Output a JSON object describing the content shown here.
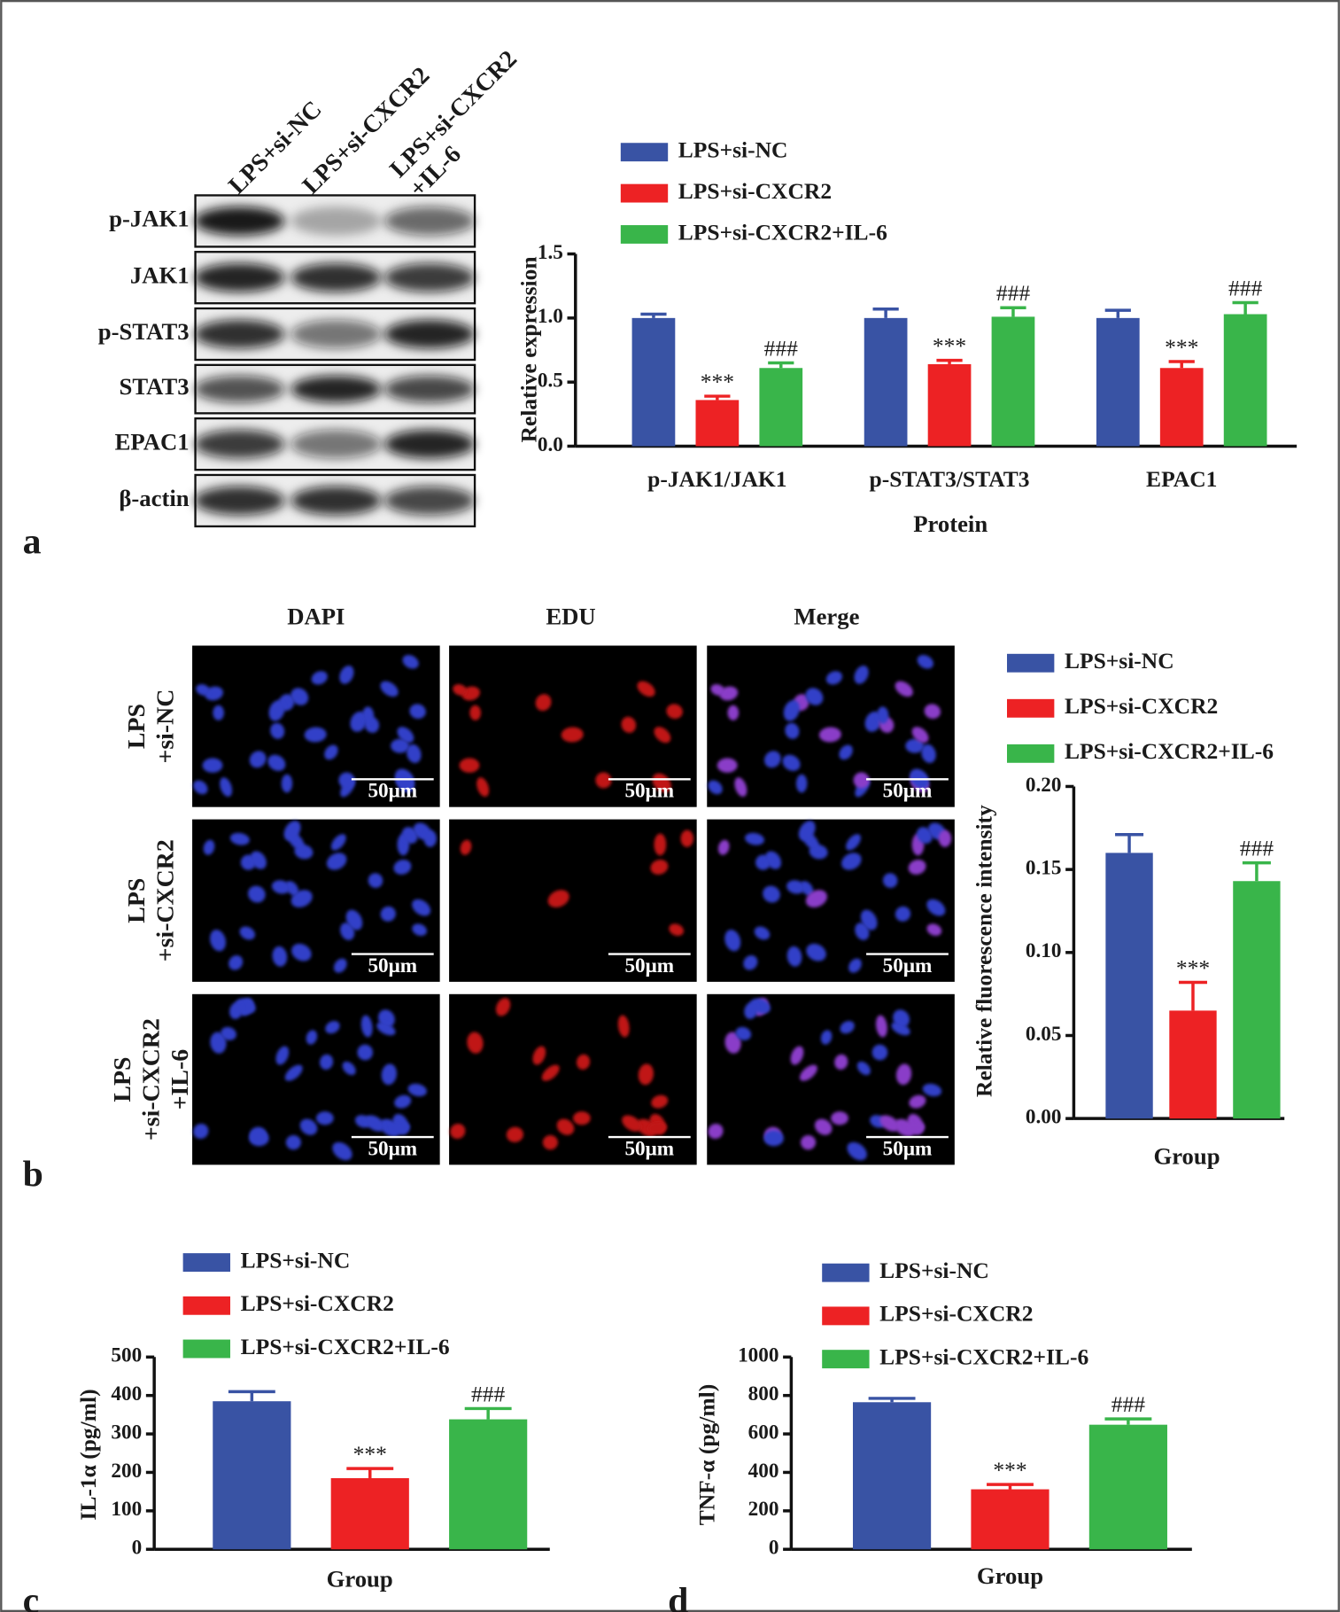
{
  "figure": {
    "panel_labels": [
      "a",
      "b",
      "c",
      "d"
    ],
    "blot": {
      "lanes": [
        [
          "LPS+si-NC"
        ],
        [
          "LPS+si-CXCR2"
        ],
        [
          "LPS+si-CXCR2",
          "+IL-6"
        ]
      ],
      "rows": [
        "p-JAK1",
        "JAK1",
        "p-STAT3",
        "STAT3",
        "EPAC1",
        "β-actin"
      ]
    },
    "microscopy": {
      "columns": [
        "DAPI",
        "EDU",
        "Merge"
      ],
      "rows": [
        [
          "LPS",
          "+si-NC"
        ],
        [
          "LPS",
          "+si-CXCR2"
        ],
        [
          "LPS",
          "+si-CXCR2",
          "+IL-6"
        ]
      ],
      "scale_bar": "50μm"
    }
  },
  "chart_data": [
    {
      "type": "bar",
      "categories": [
        "p-JAK1/JAK1",
        "p-STAT3/STAT3",
        "EPAC1"
      ],
      "xlabel": "Protein",
      "ylabel": "Relative expression",
      "ylim": [
        0,
        1.5
      ],
      "yticks": [
        {
          "value": 0,
          "label": "0.0"
        },
        {
          "value": 0.5,
          "label": "0.5"
        },
        {
          "value": 1,
          "label": "1.0"
        },
        {
          "value": 1.5,
          "label": "1.5"
        }
      ],
      "series": [
        {
          "name": "LPS+si-NC",
          "color": "#3953a4",
          "values": [
            1.0,
            1.0,
            1.0
          ],
          "errors": [
            0.03,
            0.07,
            0.06
          ]
        },
        {
          "name": "LPS+si-CXCR2",
          "color": "#ed2224",
          "values": [
            0.36,
            0.64,
            0.61
          ],
          "errors": [
            0.03,
            0.03,
            0.05
          ],
          "annotations": [
            "***",
            "***",
            "***"
          ]
        },
        {
          "name": "LPS+si-CXCR2+IL-6",
          "color": "#39b54a",
          "values": [
            0.61,
            1.01,
            1.03
          ],
          "errors": [
            0.04,
            0.07,
            0.09
          ],
          "annotations": [
            "###",
            "###",
            "###"
          ]
        }
      ]
    },
    {
      "type": "bar",
      "categories": [
        null
      ],
      "xlabel": "Group",
      "ylabel": "Relative fluorescence intensity",
      "ylim": [
        0,
        0.2
      ],
      "yticks": [
        {
          "value": 0,
          "label": "0.00"
        },
        {
          "value": 0.05,
          "label": "0.05"
        },
        {
          "value": 0.1,
          "label": "0.10"
        },
        {
          "value": 0.15,
          "label": "0.15"
        },
        {
          "value": 0.2,
          "label": "0.20"
        }
      ],
      "series": [
        {
          "name": "LPS+si-NC",
          "color": "#3953a4",
          "values": [
            0.16
          ],
          "errors": [
            0.011
          ]
        },
        {
          "name": "LPS+si-CXCR2",
          "color": "#ed2224",
          "values": [
            0.065
          ],
          "errors": [
            0.017
          ],
          "annotations": [
            "***"
          ]
        },
        {
          "name": "LPS+si-CXCR2+IL-6",
          "color": "#39b54a",
          "values": [
            0.143
          ],
          "errors": [
            0.011
          ],
          "annotations": [
            "###"
          ]
        }
      ]
    },
    {
      "type": "bar",
      "categories": [
        null
      ],
      "xlabel": "Group",
      "ylabel": "IL-1α (pg/ml)",
      "ylim": [
        0,
        500
      ],
      "yticks": [
        0,
        100,
        200,
        300,
        400,
        500
      ],
      "series": [
        {
          "name": "LPS+si-NC",
          "color": "#3953a4",
          "values": [
            385
          ],
          "errors": [
            25
          ]
        },
        {
          "name": "LPS+si-CXCR2",
          "color": "#ed2224",
          "values": [
            185
          ],
          "errors": [
            25
          ],
          "annotations": [
            "***"
          ]
        },
        {
          "name": "LPS+si-CXCR2+IL-6",
          "color": "#39b54a",
          "values": [
            338
          ],
          "errors": [
            28
          ],
          "annotations": [
            "###"
          ]
        }
      ]
    },
    {
      "type": "bar",
      "categories": [
        null
      ],
      "xlabel": "Group",
      "ylabel": "TNF-α (pg/ml)",
      "ylim": [
        0,
        1000
      ],
      "yticks": [
        0,
        200,
        400,
        600,
        800,
        1000
      ],
      "series": [
        {
          "name": "LPS+si-NC",
          "color": "#3953a4",
          "values": [
            765
          ],
          "errors": [
            20
          ]
        },
        {
          "name": "LPS+si-CXCR2",
          "color": "#ed2224",
          "values": [
            312
          ],
          "errors": [
            25
          ],
          "annotations": [
            "***"
          ]
        },
        {
          "name": "LPS+si-CXCR2+IL-6",
          "color": "#39b54a",
          "values": [
            648
          ],
          "errors": [
            30
          ],
          "annotations": [
            "###"
          ]
        }
      ]
    }
  ]
}
